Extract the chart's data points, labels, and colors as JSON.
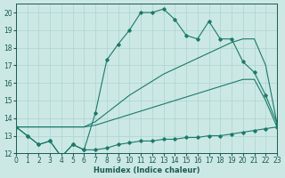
{
  "xlabel": "Humidex (Indice chaleur)",
  "background_color": "#cce8e5",
  "grid_color": "#aad4d0",
  "line_color": "#1a7a6a",
  "xlim": [
    0,
    23
  ],
  "ylim": [
    12,
    20.5
  ],
  "yticks": [
    12,
    13,
    14,
    15,
    16,
    17,
    18,
    19,
    20
  ],
  "xticks": [
    0,
    1,
    2,
    3,
    4,
    5,
    6,
    7,
    8,
    9,
    10,
    11,
    12,
    13,
    14,
    15,
    16,
    17,
    18,
    19,
    20,
    21,
    22,
    23
  ],
  "s1_x": [
    0,
    1,
    2,
    3,
    4,
    5,
    6,
    7,
    8,
    9,
    10,
    11,
    12,
    13,
    14,
    15,
    16,
    17,
    18,
    19,
    20,
    21,
    22,
    23
  ],
  "s1_y": [
    13.5,
    13.0,
    12.5,
    12.7,
    11.8,
    12.5,
    12.2,
    12.2,
    12.3,
    12.5,
    12.6,
    12.7,
    12.7,
    12.8,
    12.8,
    12.9,
    12.9,
    13.0,
    13.0,
    13.1,
    13.2,
    13.3,
    13.4,
    13.5
  ],
  "s2_x": [
    0,
    1,
    2,
    3,
    4,
    5,
    6,
    7,
    8,
    9,
    10,
    11,
    12,
    13,
    14,
    15,
    16,
    17,
    18,
    19,
    20,
    21,
    22,
    23
  ],
  "s2_y": [
    13.5,
    13.0,
    12.5,
    12.7,
    11.8,
    12.5,
    12.2,
    14.3,
    17.3,
    18.2,
    19.0,
    20.0,
    20.0,
    20.2,
    19.6,
    18.7,
    18.5,
    19.5,
    18.5,
    18.5,
    17.2,
    16.6,
    15.3,
    13.7
  ],
  "s3_x": [
    0,
    1,
    2,
    3,
    4,
    5,
    6,
    7,
    8,
    9,
    10,
    11,
    12,
    13,
    14,
    15,
    16,
    17,
    18,
    19,
    20,
    21,
    22,
    23
  ],
  "s3_y": [
    13.5,
    13.5,
    13.5,
    13.5,
    13.5,
    13.5,
    13.5,
    13.8,
    14.3,
    14.8,
    15.3,
    15.7,
    16.1,
    16.5,
    16.8,
    17.1,
    17.4,
    17.7,
    18.0,
    18.3,
    18.5,
    18.5,
    17.0,
    13.7
  ],
  "s4_x": [
    0,
    1,
    2,
    3,
    4,
    5,
    6,
    7,
    8,
    9,
    10,
    11,
    12,
    13,
    14,
    15,
    16,
    17,
    18,
    19,
    20,
    21,
    22,
    23
  ],
  "s4_y": [
    13.5,
    13.5,
    13.5,
    13.5,
    13.5,
    13.5,
    13.5,
    13.6,
    13.8,
    14.0,
    14.2,
    14.4,
    14.6,
    14.8,
    15.0,
    15.2,
    15.4,
    15.6,
    15.8,
    16.0,
    16.2,
    16.2,
    15.0,
    13.5
  ]
}
